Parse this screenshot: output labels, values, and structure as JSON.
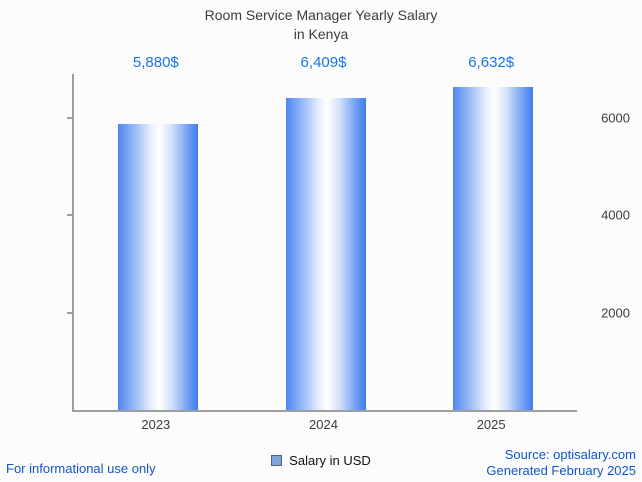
{
  "title": {
    "line1": "Room Service Manager Yearly Salary",
    "line2": "in Kenya"
  },
  "chart_data": {
    "type": "bar",
    "title": "Room Service Manager Yearly Salary in Kenya",
    "categories": [
      "2023",
      "2024",
      "2025"
    ],
    "values": [
      5880,
      6409,
      6632
    ],
    "value_labels": [
      "5,880$",
      "6,409$",
      "6,632$"
    ],
    "xlabel": "",
    "ylabel": "",
    "ylim": [
      0,
      6900
    ],
    "yticks": [
      2000,
      4000,
      6000
    ],
    "grid": false,
    "legend_entries": [
      "Salary in USD"
    ],
    "legend_position": "bottom",
    "bar_edge_color": "#4f87f0",
    "bar_center_color": "#ffffff"
  },
  "legend": {
    "label": "Salary in USD"
  },
  "footer": {
    "disclaimer": "For informational use only",
    "source": "Source: optisalary.com",
    "generated": "Generated February 2025"
  },
  "colors": {
    "value_label": "#1a73e8",
    "footer_link": "#1155cc",
    "axis": "#9e9e9e",
    "text": "#3d3d3d"
  }
}
